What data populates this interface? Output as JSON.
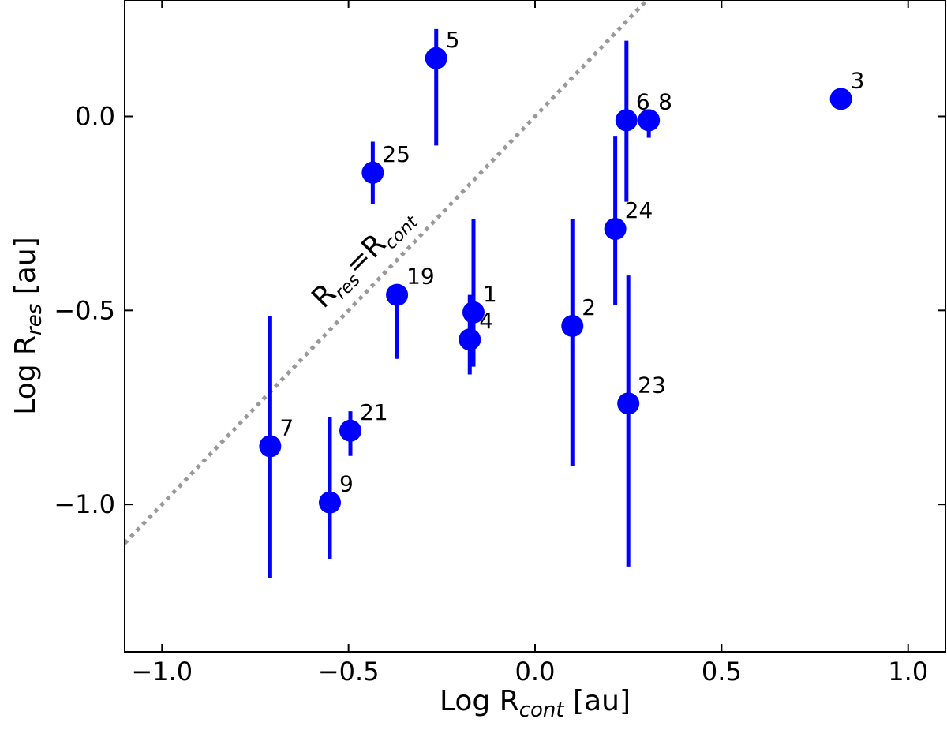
{
  "chart_data": {
    "type": "scatter",
    "xlabel": {
      "base": "Log R",
      "sub": "cont",
      "unit": " [au]"
    },
    "ylabel": {
      "base": "Log R",
      "sub": "res",
      "unit": " [au]"
    },
    "xlim": [
      -1.1,
      1.1
    ],
    "ylim": [
      -1.38,
      0.3
    ],
    "xticks": [
      -1.0,
      -0.5,
      0.0,
      0.5,
      1.0
    ],
    "xtick_labels": [
      "−1.0",
      "−0.5",
      "0.0",
      "0.5",
      "1.0"
    ],
    "yticks": [
      -1.0,
      -0.5,
      0.0
    ],
    "ytick_labels": [
      "−1.0",
      "−0.5",
      "0.0"
    ],
    "grid": false,
    "marker_color": "#0000ff",
    "line_color": "#999999",
    "reference_line": {
      "label_base": "R",
      "label_sub1": "res",
      "label_eq": "=R",
      "label_sub2": "cont",
      "slope": 1,
      "intercept": 0
    },
    "points": [
      {
        "label": "1",
        "x": -0.165,
        "y": -0.505,
        "ylo": -0.645,
        "yhi": -0.265
      },
      {
        "label": "2",
        "x": 0.1,
        "y": -0.54,
        "ylo": -0.9,
        "yhi": -0.265
      },
      {
        "label": "3",
        "x": 0.82,
        "y": 0.045,
        "ylo": null,
        "yhi": null
      },
      {
        "label": "4",
        "x": -0.175,
        "y": -0.575,
        "ylo": -0.665,
        "yhi": -0.46
      },
      {
        "label": "5",
        "x": -0.265,
        "y": 0.15,
        "ylo": -0.075,
        "yhi": 0.225
      },
      {
        "label": "6",
        "x": 0.245,
        "y": -0.01,
        "ylo": -0.22,
        "yhi": 0.195
      },
      {
        "label": "7",
        "x": -0.71,
        "y": -0.85,
        "ylo": -1.19,
        "yhi": -0.515
      },
      {
        "label": "8",
        "x": 0.305,
        "y": -0.01,
        "ylo": -0.055,
        "yhi": 0.0
      },
      {
        "label": "9",
        "x": -0.55,
        "y": -0.995,
        "ylo": -1.14,
        "yhi": -0.775
      },
      {
        "label": "19",
        "x": -0.37,
        "y": -0.46,
        "ylo": -0.625,
        "yhi": -0.46
      },
      {
        "label": "21",
        "x": -0.495,
        "y": -0.81,
        "ylo": -0.875,
        "yhi": -0.76
      },
      {
        "label": "23",
        "x": 0.25,
        "y": -0.74,
        "ylo": -1.16,
        "yhi": -0.41
      },
      {
        "label": "24",
        "x": 0.215,
        "y": -0.29,
        "ylo": -0.485,
        "yhi": -0.05
      },
      {
        "label": "25",
        "x": -0.435,
        "y": -0.145,
        "ylo": -0.225,
        "yhi": -0.065
      }
    ]
  }
}
